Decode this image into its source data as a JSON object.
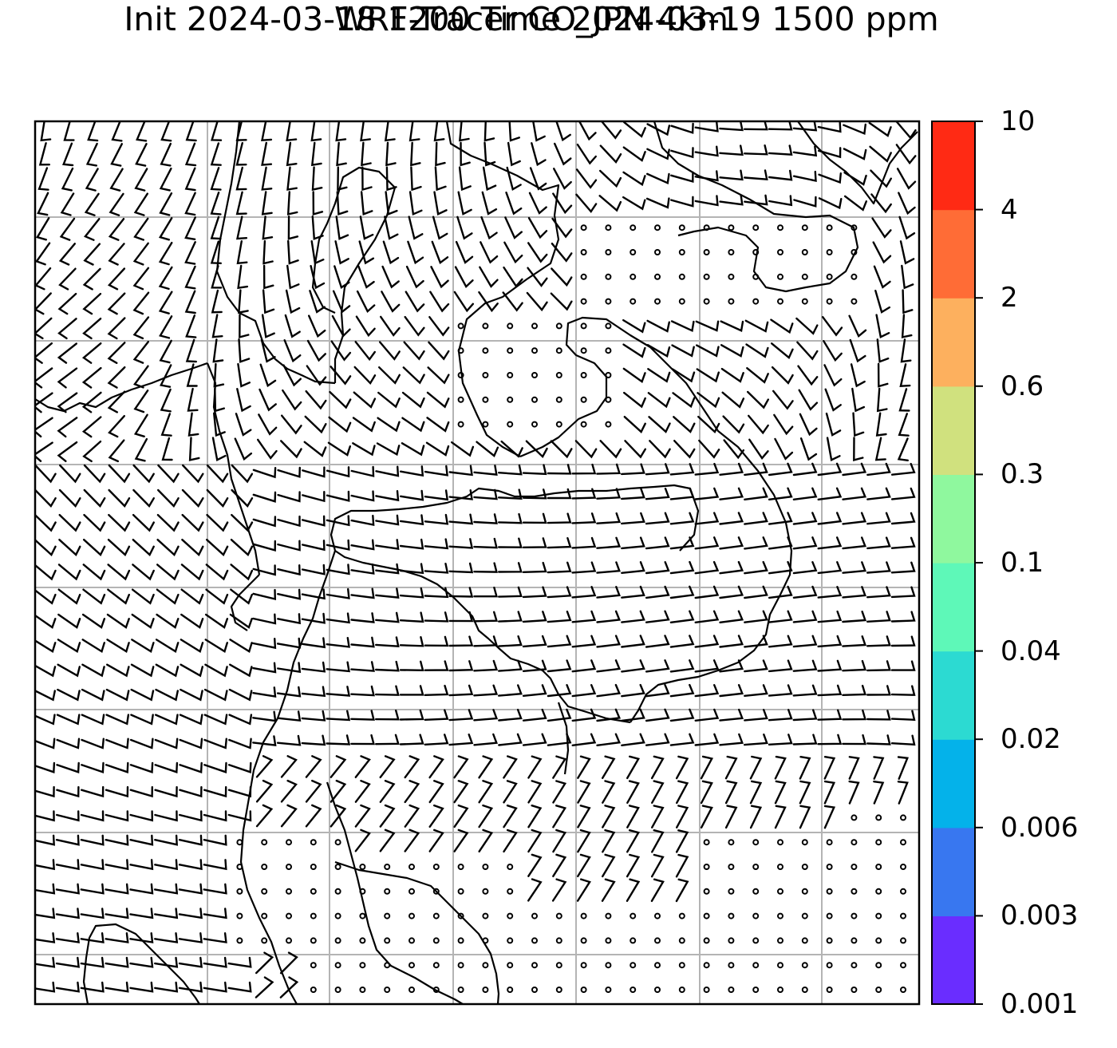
{
  "title": {
    "line1": "WRF-Tracer CO_JPN 4km",
    "line2": "Init 2024-03-18 1200 Time 2024-03-19 1500 ppm"
  },
  "colorbar": {
    "levels": [
      {
        "label": "0.001",
        "color": "#6a2dff"
      },
      {
        "label": "0.003",
        "color": "#3877f0"
      },
      {
        "label": "0.006",
        "color": "#04b2ea"
      },
      {
        "label": "0.02",
        "color": "#2cdad2"
      },
      {
        "label": "0.04",
        "color": "#5ef8b8"
      },
      {
        "label": "0.1",
        "color": "#8ff89e"
      },
      {
        "label": "0.3",
        "color": "#d0e17e"
      },
      {
        "label": "0.6",
        "color": "#fdb05e"
      },
      {
        "label": "2",
        "color": "#ff6c36"
      },
      {
        "label": "4",
        "color": "#ff2a14"
      },
      {
        "label": "10",
        "color": ""
      }
    ]
  },
  "map": {
    "gridlines": true,
    "symbol": "wind-barbs",
    "calm_marker": "open-circle"
  }
}
